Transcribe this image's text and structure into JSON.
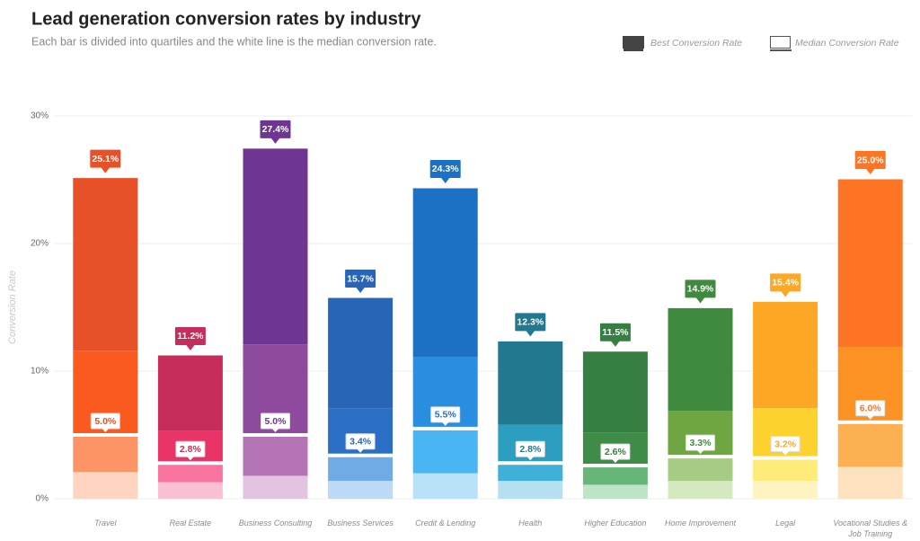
{
  "chart_data": {
    "type": "quartile_bar",
    "title": "Lead generation conversion rates by industry",
    "subtitle": "Each bar is divided into quartiles and the white line is the median conversion rate.",
    "y_label": "Conversion Rate",
    "legend": [
      "Best Conversion Rate",
      "Median Conversion Rate"
    ],
    "categories": [
      "Travel",
      "Real Estate",
      "Business Consulting",
      "Business Services",
      "Credit & Lending",
      "Health",
      "Higher Education",
      "Home Improvement",
      "Legal",
      "Vocational Studies & Job Training"
    ],
    "quartiles": [
      [
        2.1,
        2.9,
        6.6,
        13.5
      ],
      [
        1.3,
        1.5,
        2.5,
        5.9
      ],
      [
        1.8,
        3.2,
        7.1,
        15.3
      ],
      [
        1.4,
        2.0,
        3.7,
        8.6
      ],
      [
        2.0,
        3.5,
        5.6,
        13.2
      ],
      [
        1.4,
        1.4,
        3.0,
        6.5
      ],
      [
        1.1,
        1.5,
        2.6,
        6.3
      ],
      [
        1.4,
        1.9,
        3.6,
        8.0
      ],
      [
        1.4,
        1.8,
        3.9,
        8.3
      ],
      [
        2.5,
        3.5,
        5.9,
        13.1
      ]
    ],
    "best": [
      25.1,
      11.2,
      27.4,
      15.7,
      24.3,
      12.3,
      11.5,
      14.9,
      15.4,
      25.0
    ],
    "best_labels": [
      "25.1%",
      "11.2%",
      "27.4%",
      "15.7%",
      "24.3%",
      "12.3%",
      "11.5%",
      "14.9%",
      "15.4%",
      "25.0%"
    ],
    "median": [
      5.0,
      2.8,
      5.0,
      3.4,
      5.5,
      2.8,
      2.6,
      3.3,
      3.2,
      6.0
    ],
    "median_labels": [
      "5.0%",
      "2.8%",
      "5.0%",
      "3.4%",
      "5.5%",
      "2.8%",
      "2.6%",
      "3.3%",
      "3.2%",
      "6.0%"
    ],
    "colors": [
      [
        "#ffd4c0",
        "#fd9466",
        "#fb5a1f",
        "#e85128"
      ],
      [
        "#f9c0d4",
        "#f8739e",
        "#e83466",
        "#c62d5b"
      ],
      [
        "#e2c3e0",
        "#b474b6",
        "#8e4a9d",
        "#6e3592"
      ],
      [
        "#bcdaf5",
        "#70abe5",
        "#2a6ec6",
        "#2965b7"
      ],
      [
        "#b9e1f7",
        "#4ab5f3",
        "#2a8ee0",
        "#1d71c4"
      ],
      [
        "#b6dff0",
        "#3fb1d9",
        "#2c9ec0",
        "#22788f"
      ],
      [
        "#bde4c7",
        "#68b57a",
        "#3e8c48",
        "#367e41"
      ],
      [
        "#d5e9c0",
        "#a5cb85",
        "#6fa641",
        "#3f8a3f"
      ],
      [
        "#fdf4c2",
        "#fdeb7a",
        "#fdd22f",
        "#fda824"
      ],
      [
        "#fde2c0",
        "#fdb052",
        "#fd9224",
        "#fd7425"
      ]
    ],
    "ylim": [
      0,
      30
    ],
    "yticks": [
      {
        "value": 0,
        "label": "0%"
      },
      {
        "value": 10,
        "label": "10%"
      },
      {
        "value": 20,
        "label": "20%"
      },
      {
        "value": 30,
        "label": "30%"
      }
    ],
    "grid": true
  }
}
